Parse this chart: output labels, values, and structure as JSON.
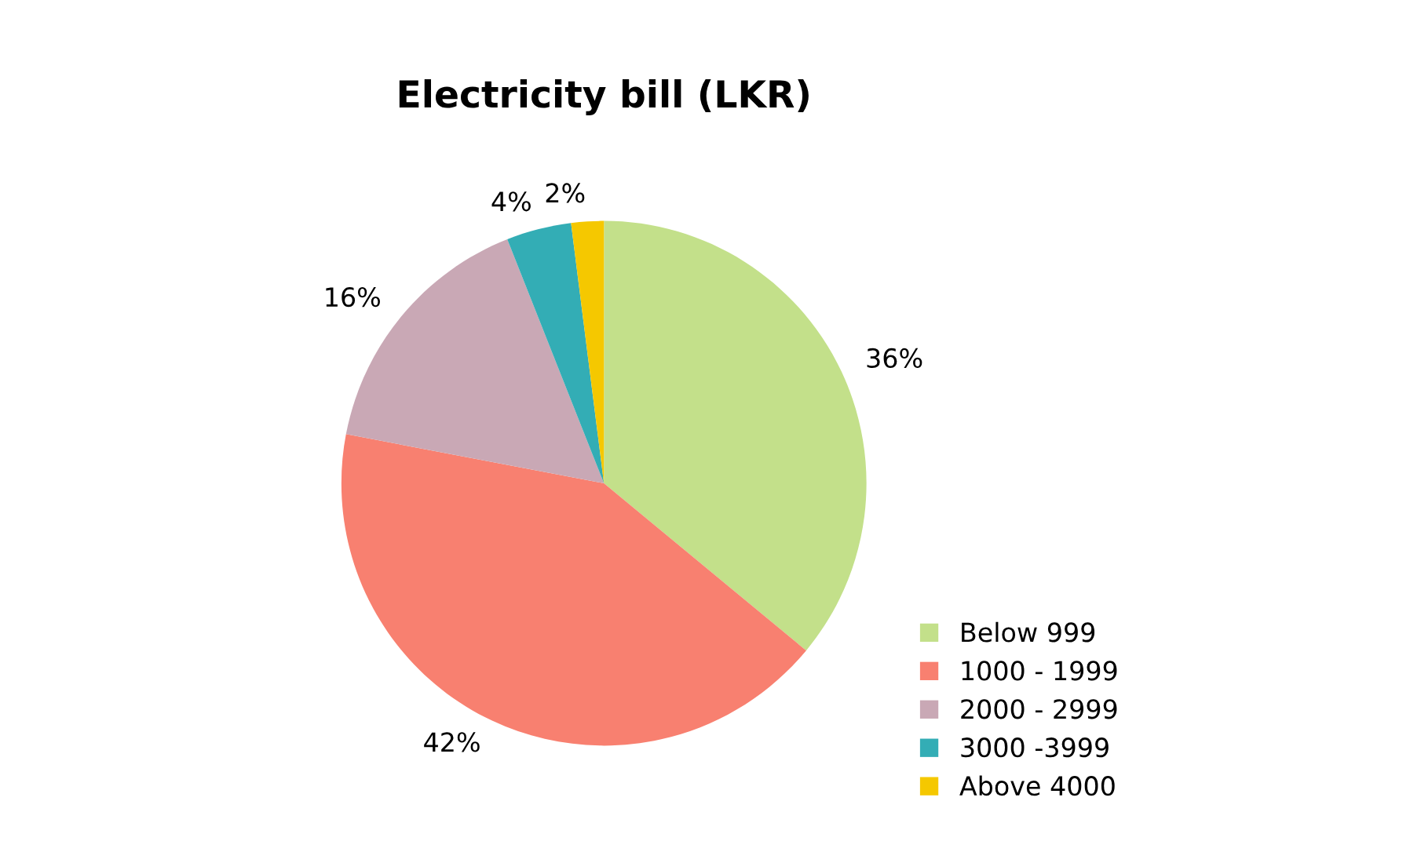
{
  "chart_data": {
    "type": "pie",
    "title": "Electricity bill (LKR)",
    "categories": [
      "Below 999",
      "1000 - 1999",
      "2000 - 2999",
      "3000 -3999",
      "Above 4000"
    ],
    "values": [
      36,
      42,
      16,
      4,
      2
    ],
    "colors": [
      "#c3e08a",
      "#f88070",
      "#c9a8b5",
      "#33adb5",
      "#f5c800"
    ],
    "value_labels": [
      "36%",
      "42%",
      "16%",
      "4%",
      "2%"
    ],
    "legend": "bottom right"
  }
}
